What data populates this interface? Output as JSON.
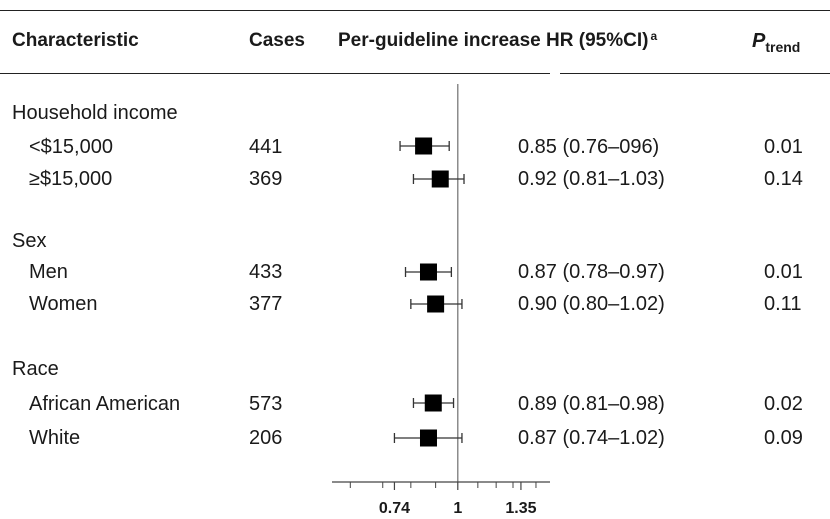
{
  "header": {
    "characteristic": "Characteristic",
    "cases": "Cases",
    "hr_label": "Per-guideline increase HR (95%CI)",
    "hr_footnote": "a",
    "p_label": "P",
    "p_sub": "trend"
  },
  "groups": [
    {
      "label": "Household income",
      "rows": [
        {
          "label": "<$15,000",
          "cases": "441",
          "hr_text": "0.85 (0.76–096)",
          "p": "0.01"
        },
        {
          "label": "≥$15,000",
          "cases": "369",
          "hr_text": "0.92 (0.81–1.03)",
          "p": "0.14"
        }
      ]
    },
    {
      "label": "Sex",
      "rows": [
        {
          "label": "Men",
          "cases": "433",
          "hr_text": "0.87 (0.78–0.97)",
          "p": "0.01"
        },
        {
          "label": "Women",
          "cases": "377",
          "hr_text": "0.90 (0.80–1.02)",
          "p": "0.11"
        }
      ]
    },
    {
      "label": "Race",
      "rows": [
        {
          "label": "African American",
          "cases": "573",
          "hr_text": "0.89 (0.81–0.98)",
          "p": "0.02"
        },
        {
          "label": "White",
          "cases": "206",
          "hr_text": "0.87 (0.74–1.02)",
          "p": "0.09"
        }
      ]
    }
  ],
  "chart_data": {
    "type": "forest",
    "x_scale": "log",
    "xlim": [
      0.55,
      1.55
    ],
    "reference_line": 1,
    "tick_labels": [
      "0.74",
      "1",
      "1.35"
    ],
    "points": [
      {
        "label": "<$15,000",
        "hr": 0.85,
        "lo": 0.76,
        "hi": 0.96
      },
      {
        "label": "≥$15,000",
        "hr": 0.92,
        "lo": 0.81,
        "hi": 1.03
      },
      {
        "label": "Men",
        "hr": 0.87,
        "lo": 0.78,
        "hi": 0.97
      },
      {
        "label": "Women",
        "hr": 0.9,
        "lo": 0.8,
        "hi": 1.02
      },
      {
        "label": "African American",
        "hr": 0.89,
        "lo": 0.81,
        "hi": 0.98
      },
      {
        "label": "White",
        "hr": 0.87,
        "lo": 0.74,
        "hi": 1.02
      }
    ]
  }
}
